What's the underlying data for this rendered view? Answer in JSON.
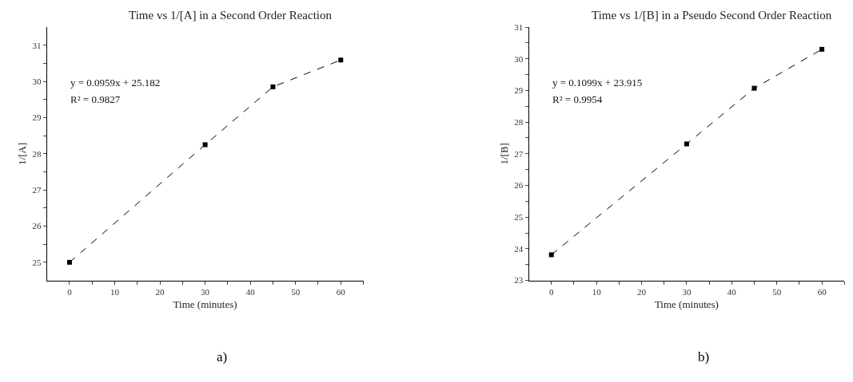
{
  "chart_data": [
    {
      "type": "line",
      "title": "Time vs 1/[A] in a Second Order Reaction",
      "xlabel": "Time (minutes)",
      "ylabel": "1/[A]",
      "x": [
        0,
        30,
        45,
        60
      ],
      "series": [
        {
          "color": "#000000",
          "values": [
            25.0,
            28.25,
            29.85,
            30.59
          ]
        }
      ],
      "xlim": [
        -5,
        65
      ],
      "ylim": [
        24.5,
        31.5
      ],
      "xticks": [
        0,
        {
          "value": 5,
          "label": null
        },
        10,
        {
          "value": 15,
          "label": null
        },
        20,
        {
          "value": 25,
          "label": null
        },
        30,
        {
          "value": 35,
          "label": null
        },
        40,
        {
          "value": 45,
          "label": null
        },
        50,
        {
          "value": 55,
          "label": null
        },
        60,
        {
          "value": 65,
          "label": null
        }
      ],
      "yticks": [
        25,
        {
          "value": 25.5,
          "label": null
        },
        26,
        {
          "value": 26.5,
          "label": null
        },
        27,
        {
          "value": 27.5,
          "label": null
        },
        28,
        {
          "value": 28.5,
          "label": null
        },
        29,
        {
          "value": 29.5,
          "label": null
        },
        30,
        {
          "value": 30.5,
          "label": null
        },
        31
      ],
      "annotations": [
        "y = 0.0959x + 25.182",
        "R² = 0.9827",
        "a)"
      ],
      "marker": "square",
      "line_style": "dashed"
    },
    {
      "type": "line",
      "title": "Time vs 1/[B] in a Pseudo Second Order Reaction",
      "xlabel": "Time (minutes)",
      "ylabel": "1/[B]",
      "x": [
        0,
        30,
        45,
        60
      ],
      "series": [
        {
          "color": "#000000",
          "values": [
            23.81,
            27.31,
            29.07,
            30.3
          ]
        }
      ],
      "xlim": [
        -5,
        65
      ],
      "ylim": [
        23,
        31
      ],
      "xticks": [
        0,
        {
          "value": 5,
          "label": null
        },
        10,
        {
          "value": 15,
          "label": null
        },
        20,
        {
          "value": 25,
          "label": null
        },
        30,
        {
          "value": 35,
          "label": null
        },
        40,
        {
          "value": 45,
          "label": null
        },
        50,
        {
          "value": 55,
          "label": null
        },
        60,
        {
          "value": 65,
          "label": null
        }
      ],
      "yticks": [
        23,
        {
          "value": 23.5,
          "label": null
        },
        24,
        {
          "value": 24.5,
          "label": null
        },
        25,
        {
          "value": 25.5,
          "label": null
        },
        26,
        {
          "value": 26.5,
          "label": null
        },
        27,
        {
          "value": 27.5,
          "label": null
        },
        28,
        {
          "value": 28.5,
          "label": null
        },
        29,
        {
          "value": 29.5,
          "label": null
        },
        30,
        {
          "value": 30.5,
          "label": null
        },
        31
      ],
      "annotations": [
        "y = 0.1099x + 23.915",
        "R² = 0.9954",
        "b)"
      ],
      "marker": "square",
      "line_style": "dashed"
    }
  ]
}
